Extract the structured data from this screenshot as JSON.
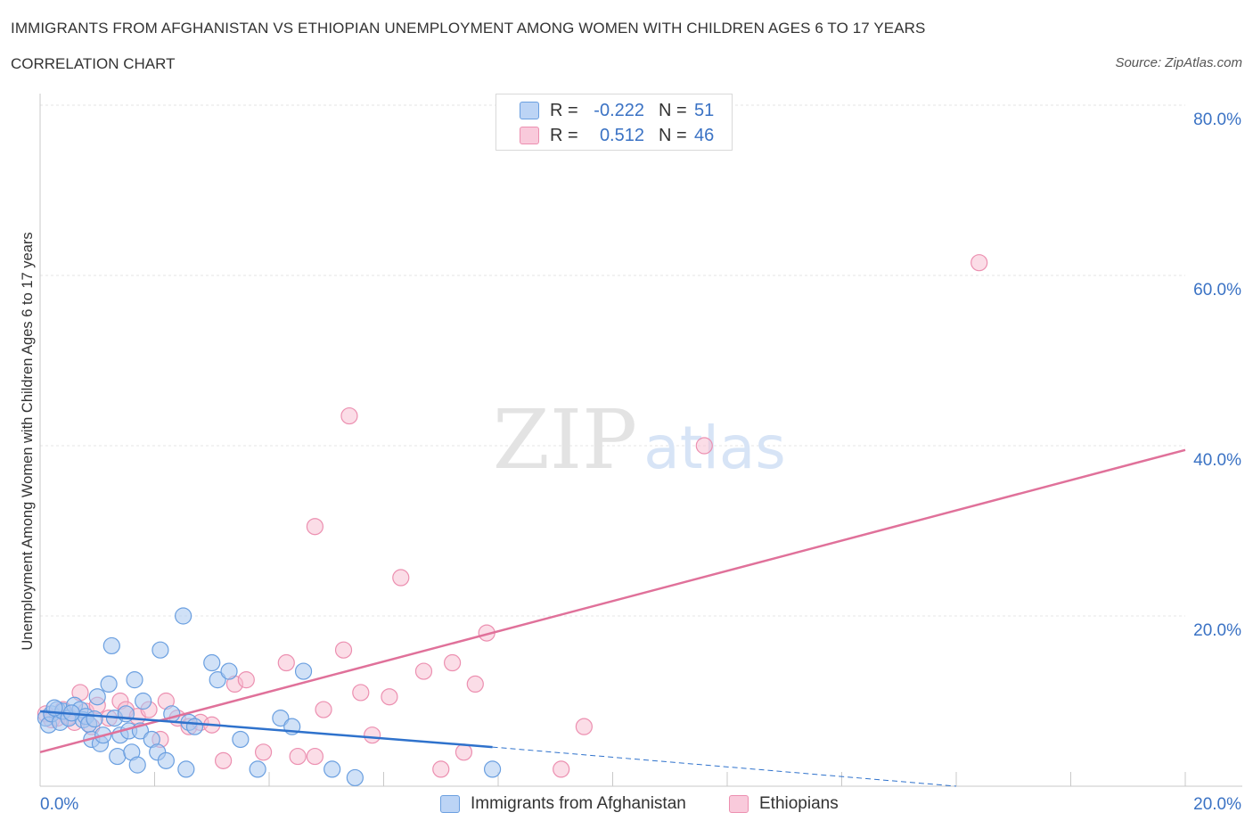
{
  "header": {
    "title": "IMMIGRANTS FROM AFGHANISTAN VS ETHIOPIAN UNEMPLOYMENT AMONG WOMEN WITH CHILDREN AGES 6 TO 17 YEARS",
    "subtitle": "CORRELATION CHART",
    "source": "Source: ZipAtlas.com"
  },
  "watermark": {
    "zip": "ZIP",
    "atlas": "atlas"
  },
  "legend": {
    "r_label": "R =",
    "n_label": "N =",
    "series": [
      {
        "name": "Immigrants from Afghanistan",
        "r": "-0.222",
        "n": "51"
      },
      {
        "name": "Ethiopians",
        "r": "0.512",
        "n": "46"
      }
    ]
  },
  "colors": {
    "blue_fill": "#a9c8f0",
    "blue_stroke": "#6a9fe0",
    "blue_line": "#2f72cc",
    "pink_fill": "#f7bcd0",
    "pink_stroke": "#ec8fb0",
    "pink_line": "#e0719a",
    "tick_text": "#3a72c4"
  },
  "chart_data": {
    "type": "scatter",
    "title": "IMMIGRANTS FROM AFGHANISTAN VS ETHIOPIAN UNEMPLOYMENT AMONG WOMEN WITH CHILDREN AGES 6 TO 17 YEARS",
    "xlabel": "",
    "ylabel": "Unemployment Among Women with Children Ages 6 to 17 years",
    "xlim": [
      0,
      20
    ],
    "ylim": [
      0,
      80
    ],
    "x_tick_labels": [
      {
        "value": 0,
        "label": "0.0%"
      },
      {
        "value": 20,
        "label": "20.0%"
      }
    ],
    "y_tick_labels": [
      {
        "value": 80,
        "label": "80.0%"
      },
      {
        "value": 60,
        "label": "60.0%"
      },
      {
        "value": 40,
        "label": "40.0%"
      },
      {
        "value": 20,
        "label": "20.0%"
      }
    ],
    "grid": true,
    "series": [
      {
        "name": "Immigrants from Afghanistan",
        "r": -0.222,
        "n": 51,
        "points": [
          [
            0.1,
            8.0
          ],
          [
            0.15,
            7.2
          ],
          [
            0.2,
            8.5
          ],
          [
            0.3,
            9.0
          ],
          [
            0.35,
            7.5
          ],
          [
            0.4,
            8.8
          ],
          [
            0.5,
            8.0
          ],
          [
            0.6,
            9.5
          ],
          [
            0.7,
            9.0
          ],
          [
            0.75,
            7.8
          ],
          [
            0.8,
            8.2
          ],
          [
            0.85,
            7.3
          ],
          [
            0.9,
            5.5
          ],
          [
            1.0,
            10.5
          ],
          [
            1.05,
            5.0
          ],
          [
            1.1,
            6.0
          ],
          [
            1.2,
            12.0
          ],
          [
            1.25,
            16.5
          ],
          [
            1.3,
            8.0
          ],
          [
            1.35,
            3.5
          ],
          [
            1.4,
            6.0
          ],
          [
            1.5,
            8.5
          ],
          [
            1.55,
            6.5
          ],
          [
            1.6,
            4.0
          ],
          [
            1.65,
            12.5
          ],
          [
            1.7,
            2.5
          ],
          [
            1.75,
            6.5
          ],
          [
            1.8,
            10.0
          ],
          [
            1.95,
            5.5
          ],
          [
            2.05,
            4.0
          ],
          [
            2.1,
            16.0
          ],
          [
            2.2,
            3.0
          ],
          [
            2.3,
            8.5
          ],
          [
            2.5,
            20.0
          ],
          [
            2.55,
            2.0
          ],
          [
            2.6,
            7.5
          ],
          [
            2.7,
            7.0
          ],
          [
            3.0,
            14.5
          ],
          [
            3.1,
            12.5
          ],
          [
            3.3,
            13.5
          ],
          [
            3.5,
            5.5
          ],
          [
            3.8,
            2.0
          ],
          [
            4.2,
            8.0
          ],
          [
            4.4,
            7.0
          ],
          [
            4.6,
            13.5
          ],
          [
            5.1,
            2.0
          ],
          [
            5.5,
            1.0
          ],
          [
            7.9,
            2.0
          ],
          [
            0.25,
            9.2
          ],
          [
            0.55,
            8.6
          ],
          [
            0.95,
            7.9
          ]
        ],
        "trend": {
          "x_start": 0.0,
          "y_start": 8.8,
          "x_solid_end": 7.9,
          "y_solid_end": 4.6,
          "x_dash_end": 16.0,
          "y_dash_end": 0.0
        }
      },
      {
        "name": "Ethiopians",
        "r": 0.512,
        "n": 46,
        "points": [
          [
            0.1,
            8.5
          ],
          [
            0.2,
            7.8
          ],
          [
            0.3,
            8.0
          ],
          [
            0.4,
            9.0
          ],
          [
            0.5,
            8.2
          ],
          [
            0.6,
            7.5
          ],
          [
            0.7,
            11.0
          ],
          [
            0.8,
            8.8
          ],
          [
            0.9,
            7.0
          ],
          [
            1.0,
            9.5
          ],
          [
            1.2,
            8.0
          ],
          [
            1.4,
            10.0
          ],
          [
            1.5,
            9.0
          ],
          [
            1.7,
            8.2
          ],
          [
            1.9,
            9.0
          ],
          [
            2.1,
            5.5
          ],
          [
            2.2,
            10.0
          ],
          [
            2.4,
            8.0
          ],
          [
            2.6,
            7.0
          ],
          [
            2.8,
            7.5
          ],
          [
            3.0,
            7.2
          ],
          [
            3.2,
            3.0
          ],
          [
            3.4,
            12.0
          ],
          [
            3.6,
            12.5
          ],
          [
            3.9,
            4.0
          ],
          [
            4.3,
            14.5
          ],
          [
            4.5,
            3.5
          ],
          [
            4.8,
            3.5
          ],
          [
            4.95,
            9.0
          ],
          [
            4.8,
            30.5
          ],
          [
            5.3,
            16.0
          ],
          [
            5.4,
            43.5
          ],
          [
            5.6,
            11.0
          ],
          [
            5.8,
            6.0
          ],
          [
            6.1,
            10.5
          ],
          [
            6.3,
            24.5
          ],
          [
            6.7,
            13.5
          ],
          [
            7.0,
            2.0
          ],
          [
            7.2,
            14.5
          ],
          [
            7.4,
            4.0
          ],
          [
            7.6,
            12.0
          ],
          [
            7.8,
            18.0
          ],
          [
            9.1,
            2.0
          ],
          [
            9.5,
            7.0
          ],
          [
            11.6,
            40.0
          ],
          [
            16.4,
            61.5
          ]
        ],
        "trend": {
          "x_start": 0.0,
          "y_start": 4.0,
          "x_end": 20.0,
          "y_end": 39.5
        }
      }
    ]
  }
}
